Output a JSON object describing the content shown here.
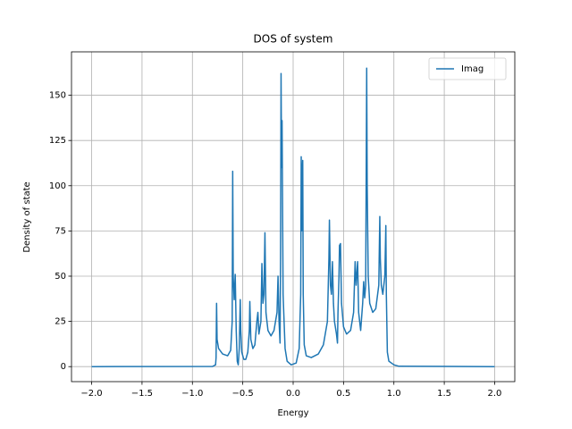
{
  "chart_data": {
    "type": "line",
    "title": "DOS of system",
    "xlabel": "Energy",
    "ylabel": "Density of state",
    "grid": true,
    "legend": "upper right",
    "xlim": [
      -2.2,
      2.2
    ],
    "ylim": [
      -8.3,
      174
    ],
    "xticks": [
      {
        "value": -2.0,
        "label": "−2.0"
      },
      {
        "value": -1.5,
        "label": "−1.5"
      },
      {
        "value": -1.0,
        "label": "−1.0"
      },
      {
        "value": -0.5,
        "label": "−0.5"
      },
      {
        "value": 0,
        "label": "0.0"
      },
      0.5,
      {
        "value": 1,
        "label": "1.0"
      },
      1.5,
      {
        "value": 2,
        "label": "2.0"
      }
    ],
    "yticks": [
      0,
      25,
      50,
      75,
      100,
      125,
      150
    ],
    "series": [
      {
        "name": "Imag",
        "color": "#1f77b4",
        "x": [
          -2.0,
          -0.8,
          -0.77,
          -0.765,
          -0.76,
          -0.755,
          -0.74,
          -0.7,
          -0.65,
          -0.62,
          -0.605,
          -0.6,
          -0.595,
          -0.585,
          -0.575,
          -0.565,
          -0.555,
          -0.545,
          -0.535,
          -0.525,
          -0.52,
          -0.51,
          -0.49,
          -0.47,
          -0.45,
          -0.435,
          -0.43,
          -0.42,
          -0.4,
          -0.38,
          -0.36,
          -0.35,
          -0.34,
          -0.32,
          -0.31,
          -0.3,
          -0.29,
          -0.28,
          -0.27,
          -0.25,
          -0.22,
          -0.19,
          -0.16,
          -0.15,
          -0.14,
          -0.13,
          -0.125,
          -0.12,
          -0.115,
          -0.11,
          -0.1,
          -0.08,
          -0.06,
          -0.02,
          0.03,
          0.06,
          0.075,
          0.08,
          0.085,
          0.09,
          0.095,
          0.1,
          0.11,
          0.13,
          0.18,
          0.25,
          0.3,
          0.34,
          0.355,
          0.36,
          0.37,
          0.38,
          0.39,
          0.4,
          0.41,
          0.43,
          0.44,
          0.445,
          0.455,
          0.46,
          0.47,
          0.48,
          0.5,
          0.53,
          0.57,
          0.6,
          0.615,
          0.625,
          0.64,
          0.65,
          0.67,
          0.69,
          0.7,
          0.71,
          0.72,
          0.73,
          0.735,
          0.745,
          0.76,
          0.79,
          0.82,
          0.85,
          0.86,
          0.865,
          0.875,
          0.89,
          0.91,
          0.92,
          0.925,
          0.935,
          0.95,
          1.0,
          1.05,
          2.0
        ],
        "values": [
          0,
          0.1,
          1,
          5,
          35,
          15,
          10,
          7,
          6,
          9,
          25,
          108,
          50,
          37,
          51,
          20,
          3,
          1,
          10,
          37,
          20,
          8,
          4,
          4,
          8,
          20,
          36,
          15,
          10,
          12,
          25,
          30,
          18,
          25,
          57,
          35,
          40,
          74,
          30,
          20,
          17,
          20,
          30,
          50,
          25,
          13,
          60,
          162,
          110,
          136,
          40,
          10,
          3,
          1,
          2,
          10,
          40,
          116,
          75,
          105,
          114,
          40,
          12,
          6,
          5,
          7,
          12,
          25,
          60,
          81,
          45,
          40,
          58,
          35,
          25,
          18,
          13,
          30,
          50,
          67,
          68,
          35,
          22,
          18,
          20,
          30,
          58,
          45,
          58,
          30,
          20,
          35,
          47,
          38,
          45,
          165,
          100,
          50,
          35,
          30,
          32,
          45,
          83,
          60,
          45,
          40,
          50,
          78,
          40,
          8,
          3,
          1,
          0.2,
          0
        ]
      }
    ]
  }
}
